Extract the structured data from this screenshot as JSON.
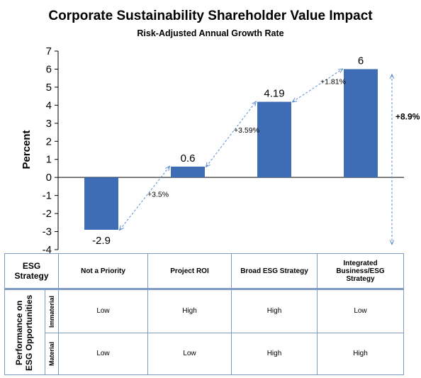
{
  "chart_data": {
    "type": "bar",
    "title": "Corporate Sustainability Shareholder Value Impact",
    "subtitle": "Risk-Adjusted  Annual Growth Rate",
    "ylabel": "Percent",
    "xlabel": "",
    "ylim": [
      -4,
      7
    ],
    "yticks": [
      -4,
      -3,
      -2,
      -1,
      0,
      1,
      2,
      3,
      4,
      5,
      6,
      7
    ],
    "categories": [
      "Not a Priority",
      "Project ROI",
      "Broad ESG Strategy",
      "Integrated Business/ESG Strategy"
    ],
    "values": [
      -2.9,
      0.6,
      4.19,
      6
    ],
    "data_labels": [
      "-2.9",
      "0.6",
      "4.19",
      "6"
    ],
    "bar_color": "#3f6db5",
    "arrow_color": "#5b8ed0",
    "grid": false,
    "annotations": [
      {
        "text": "+3.5%",
        "from_bar": 0,
        "to_bar": 1
      },
      {
        "text": "+3.59%",
        "from_bar": 1,
        "to_bar": 2
      },
      {
        "text": "+1.81%",
        "from_bar": 2,
        "to_bar": 3
      }
    ],
    "total_annotation": {
      "text": "+8.9%",
      "from_value": 6,
      "to_value": -4
    }
  },
  "table": {
    "corner_label": "ESG Strategy",
    "row_group_label": "Performance on ESG Opportunities",
    "columns": [
      "Not a Priority",
      "Project ROI",
      "Broad ESG Strategy",
      "Integrated Business/ESG Strategy"
    ],
    "rows": [
      {
        "label": "Immaterial",
        "cells": [
          "Low",
          "High",
          "High",
          "Low"
        ]
      },
      {
        "label": "Material",
        "cells": [
          "Low",
          "Low",
          "High",
          "High"
        ]
      }
    ]
  }
}
